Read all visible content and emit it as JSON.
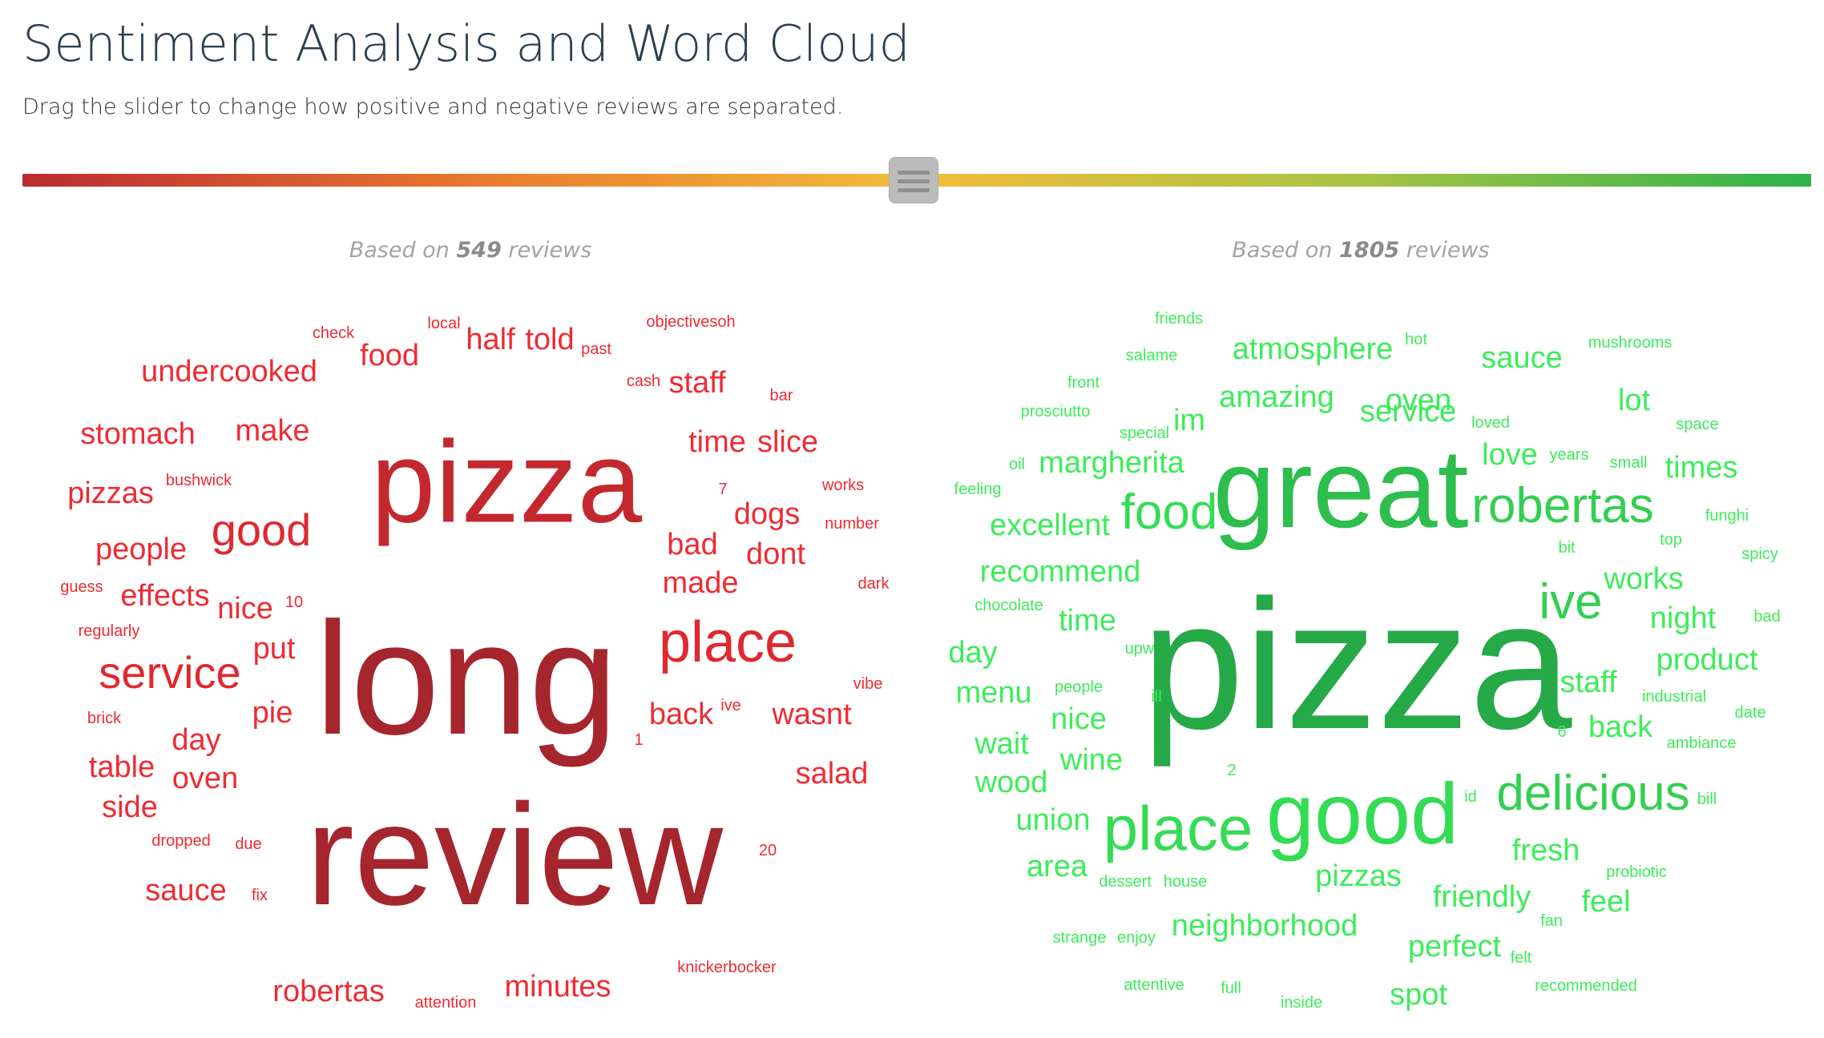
{
  "header": {
    "title": "Sentiment Analysis and Word Cloud",
    "subtitle": "Drag the slider to change how positive and negative reviews are separated."
  },
  "slider": {
    "value": 0.5,
    "gradient_colors": [
      "#b82c31",
      "#e8782f",
      "#f3bd3a",
      "#a7c346",
      "#2cb34a"
    ]
  },
  "negative": {
    "based_prefix": "Based on ",
    "count": "549",
    "based_suffix": " reviews",
    "words": [
      {
        "text": "long",
        "color": "#a5262d"
      },
      {
        "text": "review",
        "color": "#a5262d"
      },
      {
        "text": "pizza",
        "color": "#c3282f"
      },
      {
        "text": "place",
        "color": "#e0282f"
      },
      {
        "text": "good",
        "color": "#e0282f"
      },
      {
        "text": "service",
        "color": "#e0282f"
      },
      {
        "text": "undercooked",
        "color": "#ef2b33"
      },
      {
        "text": "stomach",
        "color": "#ef2b33"
      },
      {
        "text": "make",
        "color": "#ef2b33"
      },
      {
        "text": "pizzas",
        "color": "#ef2b33"
      },
      {
        "text": "people",
        "color": "#ef2b33"
      },
      {
        "text": "effects",
        "color": "#ef2b33"
      },
      {
        "text": "nice",
        "color": "#ef2b33"
      },
      {
        "text": "put",
        "color": "#ef2b33"
      },
      {
        "text": "pie",
        "color": "#ef2b33"
      },
      {
        "text": "day",
        "color": "#ef2b33"
      },
      {
        "text": "table",
        "color": "#ef2b33"
      },
      {
        "text": "oven",
        "color": "#ef2b33"
      },
      {
        "text": "side",
        "color": "#ef2b33"
      },
      {
        "text": "sauce",
        "color": "#ef2b33"
      },
      {
        "text": "robertas",
        "color": "#ef2b33"
      },
      {
        "text": "minutes",
        "color": "#ef2b33"
      },
      {
        "text": "food",
        "color": "#ef2b33"
      },
      {
        "text": "half",
        "color": "#ef2b33"
      },
      {
        "text": "told",
        "color": "#ef2b33"
      },
      {
        "text": "staff",
        "color": "#ef2b33"
      },
      {
        "text": "time",
        "color": "#ef2b33"
      },
      {
        "text": "slice",
        "color": "#ef2b33"
      },
      {
        "text": "dogs",
        "color": "#ef2b33"
      },
      {
        "text": "bad",
        "color": "#ef2b33"
      },
      {
        "text": "dont",
        "color": "#ef2b33"
      },
      {
        "text": "made",
        "color": "#ef2b33"
      },
      {
        "text": "back",
        "color": "#ef2b33"
      },
      {
        "text": "wasnt",
        "color": "#ef2b33"
      },
      {
        "text": "salad",
        "color": "#ef2b33"
      },
      {
        "text": "check",
        "color": "#ef2b33"
      },
      {
        "text": "local",
        "color": "#ef2b33"
      },
      {
        "text": "past",
        "color": "#ef2b33"
      },
      {
        "text": "objectivesoh",
        "color": "#ef2b33"
      },
      {
        "text": "cash",
        "color": "#ef2b33"
      },
      {
        "text": "bar",
        "color": "#ef2b33"
      },
      {
        "text": "bushwick",
        "color": "#ef2b33"
      },
      {
        "text": "7",
        "color": "#ef2b33"
      },
      {
        "text": "works",
        "color": "#ef2b33"
      },
      {
        "text": "number",
        "color": "#ef2b33"
      },
      {
        "text": "guess",
        "color": "#ef2b33"
      },
      {
        "text": "10",
        "color": "#ef2b33"
      },
      {
        "text": "dark",
        "color": "#ef2b33"
      },
      {
        "text": "regularly",
        "color": "#ef2b33"
      },
      {
        "text": "vibe",
        "color": "#ef2b33"
      },
      {
        "text": "brick",
        "color": "#ef2b33"
      },
      {
        "text": "ive",
        "color": "#ef2b33"
      },
      {
        "text": "1",
        "color": "#ef2b33"
      },
      {
        "text": "dropped",
        "color": "#ef2b33"
      },
      {
        "text": "due",
        "color": "#ef2b33"
      },
      {
        "text": "20",
        "color": "#ef2b33"
      },
      {
        "text": "fix",
        "color": "#ef2b33"
      },
      {
        "text": "knickerbocker",
        "color": "#ef2b33"
      },
      {
        "text": "attention",
        "color": "#ef2b33"
      }
    ]
  },
  "positive": {
    "based_prefix": "Based on ",
    "count": "1805",
    "based_suffix": " reviews",
    "words": [
      {
        "text": "pizza",
        "color": "#26a947"
      },
      {
        "text": "great",
        "color": "#2dbe4e"
      },
      {
        "text": "good",
        "color": "#34dc54"
      },
      {
        "text": "place",
        "color": "#34dc54"
      },
      {
        "text": "delicious",
        "color": "#34cf52"
      },
      {
        "text": "robertas",
        "color": "#34cf52"
      },
      {
        "text": "food",
        "color": "#34dc54"
      },
      {
        "text": "ive",
        "color": "#34cf52"
      },
      {
        "text": "friends",
        "color": "#3ced5a"
      },
      {
        "text": "hot",
        "color": "#3ced5a"
      },
      {
        "text": "mushrooms",
        "color": "#3ced5a"
      },
      {
        "text": "salame",
        "color": "#3ced5a"
      },
      {
        "text": "atmosphere",
        "color": "#3ced5a"
      },
      {
        "text": "sauce",
        "color": "#3ced5a"
      },
      {
        "text": "front",
        "color": "#3ced5a"
      },
      {
        "text": "amazing",
        "color": "#3ced5a"
      },
      {
        "text": "oven",
        "color": "#3ced5a"
      },
      {
        "text": "lot",
        "color": "#3ced5a"
      },
      {
        "text": "prosciutto",
        "color": "#3ced5a"
      },
      {
        "text": "service",
        "color": "#3ced5a"
      },
      {
        "text": "space",
        "color": "#3ced5a"
      },
      {
        "text": "special",
        "color": "#3ced5a"
      },
      {
        "text": "im",
        "color": "#3ced5a"
      },
      {
        "text": "loved",
        "color": "#3ced5a"
      },
      {
        "text": "love",
        "color": "#3ced5a"
      },
      {
        "text": "years",
        "color": "#3ced5a"
      },
      {
        "text": "small",
        "color": "#3ced5a"
      },
      {
        "text": "times",
        "color": "#3ced5a"
      },
      {
        "text": "oil",
        "color": "#3ced5a"
      },
      {
        "text": "margherita",
        "color": "#3ced5a"
      },
      {
        "text": "feeling",
        "color": "#3ced5a"
      },
      {
        "text": "funghi",
        "color": "#3ced5a"
      },
      {
        "text": "excellent",
        "color": "#3ced5a"
      },
      {
        "text": "top",
        "color": "#3ced5a"
      },
      {
        "text": "bit",
        "color": "#3ced5a"
      },
      {
        "text": "spicy",
        "color": "#3ced5a"
      },
      {
        "text": "recommend",
        "color": "#3ced5a"
      },
      {
        "text": "works",
        "color": "#3ced5a"
      },
      {
        "text": "chocolate",
        "color": "#3ced5a"
      },
      {
        "text": "time",
        "color": "#3ced5a"
      },
      {
        "text": "night",
        "color": "#3ced5a"
      },
      {
        "text": "bad",
        "color": "#3ced5a"
      },
      {
        "text": "day",
        "color": "#3ced5a"
      },
      {
        "text": "upw",
        "color": "#3ced5a"
      },
      {
        "text": "product",
        "color": "#3ced5a"
      },
      {
        "text": "people",
        "color": "#3ced5a"
      },
      {
        "text": "menu",
        "color": "#3ced5a"
      },
      {
        "text": "staff",
        "color": "#3ced5a"
      },
      {
        "text": "ill",
        "color": "#3ced5a"
      },
      {
        "text": "industrial",
        "color": "#3ced5a"
      },
      {
        "text": "nice",
        "color": "#3ced5a"
      },
      {
        "text": "date",
        "color": "#3ced5a"
      },
      {
        "text": "wait",
        "color": "#3ced5a"
      },
      {
        "text": "6",
        "color": "#3ced5a"
      },
      {
        "text": "back",
        "color": "#3ced5a"
      },
      {
        "text": "ambiance",
        "color": "#3ced5a"
      },
      {
        "text": "wine",
        "color": "#3ced5a"
      },
      {
        "text": "2",
        "color": "#3ced5a"
      },
      {
        "text": "wood",
        "color": "#3ced5a"
      },
      {
        "text": "id",
        "color": "#3ced5a"
      },
      {
        "text": "bill",
        "color": "#3ced5a"
      },
      {
        "text": "union",
        "color": "#3ced5a"
      },
      {
        "text": "fresh",
        "color": "#3ced5a"
      },
      {
        "text": "area",
        "color": "#3ced5a"
      },
      {
        "text": "probiotic",
        "color": "#3ced5a"
      },
      {
        "text": "dessert",
        "color": "#3ced5a"
      },
      {
        "text": "house",
        "color": "#3ced5a"
      },
      {
        "text": "pizzas",
        "color": "#3ced5a"
      },
      {
        "text": "friendly",
        "color": "#3ced5a"
      },
      {
        "text": "feel",
        "color": "#3ced5a"
      },
      {
        "text": "fan",
        "color": "#3ced5a"
      },
      {
        "text": "strange",
        "color": "#3ced5a"
      },
      {
        "text": "enjoy",
        "color": "#3ced5a"
      },
      {
        "text": "neighborhood",
        "color": "#3ced5a"
      },
      {
        "text": "perfect",
        "color": "#3ced5a"
      },
      {
        "text": "felt",
        "color": "#3ced5a"
      },
      {
        "text": "attentive",
        "color": "#3ced5a"
      },
      {
        "text": "full",
        "color": "#3ced5a"
      },
      {
        "text": "inside",
        "color": "#3ced5a"
      },
      {
        "text": "spot",
        "color": "#3ced5a"
      },
      {
        "text": "recommended",
        "color": "#3ced5a"
      }
    ]
  }
}
